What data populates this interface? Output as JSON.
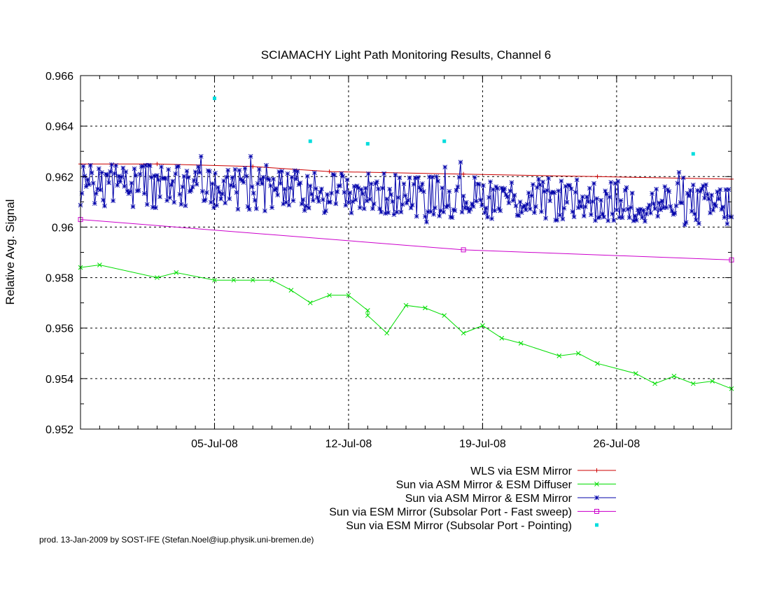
{
  "chart_data": {
    "type": "line",
    "title": "SCIAMACHY Light Path Monitoring Results, Channel 6",
    "xlabel": "",
    "ylabel": "Relative Avg. Signal",
    "x_axis": {
      "type": "date",
      "range": [
        "2008-06-28",
        "2008-08-01"
      ],
      "tick_labels": [
        {
          "date": "2008-07-05",
          "label": "05-Jul-08"
        },
        {
          "date": "2008-07-12",
          "label": "12-Jul-08"
        },
        {
          "date": "2008-07-19",
          "label": "19-Jul-08"
        },
        {
          "date": "2008-07-26",
          "label": "26-Jul-08"
        }
      ]
    },
    "ylim": [
      0.952,
      0.966
    ],
    "y_tick_labels": [
      "0.952",
      "0.954",
      "0.956",
      "0.958",
      "0.96",
      "0.962",
      "0.964",
      "0.966"
    ],
    "y_tick_values": [
      0.952,
      0.954,
      0.956,
      0.958,
      0.96,
      0.962,
      0.964,
      0.966
    ],
    "grid": true,
    "legend_position": "bottom-right",
    "series": [
      {
        "name": "WLS via ESM Mirror",
        "color": "#cc0000",
        "marker": "plus",
        "points": [
          {
            "x": "2008-06-28",
            "y": 0.9625
          },
          {
            "x": "2008-07-02",
            "y": 0.9625
          },
          {
            "x": "2008-07-07",
            "y": 0.9624
          },
          {
            "x": "2008-07-11",
            "y": 0.9622
          },
          {
            "x": "2008-07-18",
            "y": 0.9621
          },
          {
            "x": "2008-07-25",
            "y": 0.962
          },
          {
            "x": "2008-08-01",
            "y": 0.9619
          }
        ]
      },
      {
        "name": "Sun via ASM Mirror & ESM Diffuser",
        "color": "#00dd00",
        "marker": "x",
        "points": [
          {
            "x": "2008-06-28",
            "y": 0.9584
          },
          {
            "x": "2008-06-29",
            "y": 0.9585
          },
          {
            "x": "2008-07-02",
            "y": 0.958
          },
          {
            "x": "2008-07-03",
            "y": 0.9582
          },
          {
            "x": "2008-07-05",
            "y": 0.9579
          },
          {
            "x": "2008-07-06",
            "y": 0.9579
          },
          {
            "x": "2008-07-07",
            "y": 0.9579
          },
          {
            "x": "2008-07-08",
            "y": 0.9579
          },
          {
            "x": "2008-07-09",
            "y": 0.9575
          },
          {
            "x": "2008-07-10",
            "y": 0.957
          },
          {
            "x": "2008-07-11",
            "y": 0.9573
          },
          {
            "x": "2008-07-12",
            "y": 0.9573
          },
          {
            "x": "2008-07-13",
            "y": 0.9567
          },
          {
            "x": "2008-07-13",
            "y": 0.9565
          },
          {
            "x": "2008-07-14",
            "y": 0.9558
          },
          {
            "x": "2008-07-15",
            "y": 0.9569
          },
          {
            "x": "2008-07-16",
            "y": 0.9568
          },
          {
            "x": "2008-07-17",
            "y": 0.9565
          },
          {
            "x": "2008-07-18",
            "y": 0.9558
          },
          {
            "x": "2008-07-19",
            "y": 0.9561
          },
          {
            "x": "2008-07-20",
            "y": 0.9556
          },
          {
            "x": "2008-07-21",
            "y": 0.9554
          },
          {
            "x": "2008-07-23",
            "y": 0.9549
          },
          {
            "x": "2008-07-24",
            "y": 0.955
          },
          {
            "x": "2008-07-25",
            "y": 0.9546
          },
          {
            "x": "2008-07-27",
            "y": 0.9542
          },
          {
            "x": "2008-07-28",
            "y": 0.9538
          },
          {
            "x": "2008-07-29",
            "y": 0.9541
          },
          {
            "x": "2008-07-30",
            "y": 0.9538
          },
          {
            "x": "2008-07-31",
            "y": 0.9539
          },
          {
            "x": "2008-08-01",
            "y": 0.9536
          }
        ]
      },
      {
        "name": "Sun via ASM Mirror & ESM Mirror",
        "color": "#0000aa",
        "marker": "star",
        "start": "2008-06-28",
        "end": "2008-08-01",
        "y_range": [
          0.9594,
          0.9628
        ],
        "count": 460
      },
      {
        "name": "Sun via ESM Mirror (Subsolar Port - Fast sweep)",
        "color": "#cc00cc",
        "marker": "square",
        "points": [
          {
            "x": "2008-06-28",
            "y": 0.9603
          },
          {
            "x": "2008-07-18",
            "y": 0.9591
          },
          {
            "x": "2008-08-01",
            "y": 0.9587
          }
        ]
      },
      {
        "name": "Sun via ESM Mirror (Subsolar Port - Pointing)",
        "color": "#00dddd",
        "marker": "dot",
        "points": [
          {
            "x": "2008-07-05",
            "y": 0.9651
          },
          {
            "x": "2008-07-10",
            "y": 0.9634
          },
          {
            "x": "2008-07-13",
            "y": 0.9633
          },
          {
            "x": "2008-07-17",
            "y": 0.9634
          },
          {
            "x": "2008-07-30",
            "y": 0.9629
          }
        ]
      }
    ]
  },
  "footer": "prod. 13-Jan-2009 by SOST-IFE (Stefan.Noel@iup.physik.uni-bremen.de)"
}
